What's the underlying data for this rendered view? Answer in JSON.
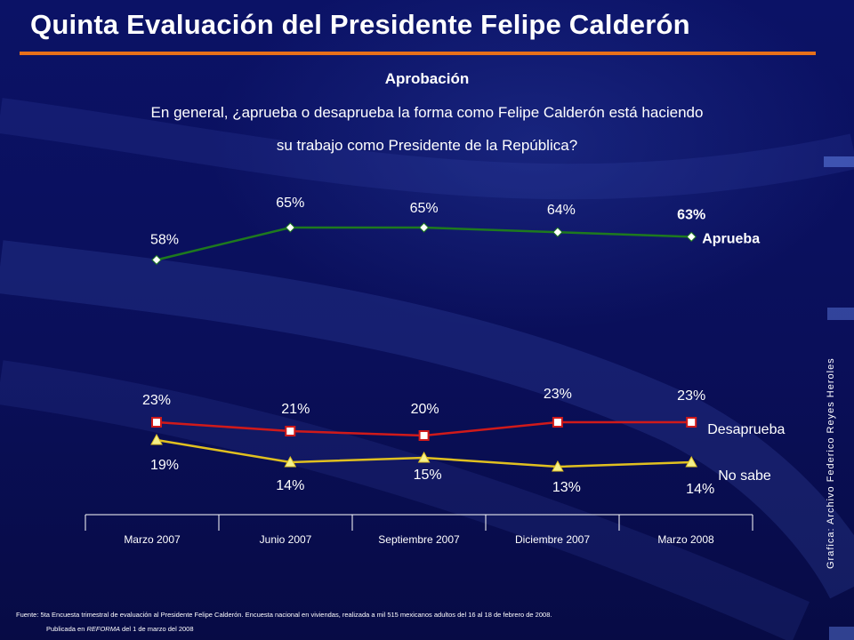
{
  "title": "Quinta Evaluación del Presidente Felipe Calderón",
  "subtitle": "Aprobación",
  "question_line1": "En general, ¿aprueba o desaprueba la forma como Felipe Calderón está haciendo",
  "question_line2": "su trabajo como Presidente de la República?",
  "credit": "Grafica: Archivo Federico Reyes Heroles",
  "source": "Fuente: 5ta Encuesta trimestral de evaluación al Presidente Felipe Calderón. Encuesta nacional en viviendas, realizada a mil 515 mexicanos adultos del 16 al 18 de febrero de 2008.",
  "published_prefix": "Publicada en ",
  "published_outlet": "REFORMA",
  "published_suffix": " del 1 de marzo del 2008",
  "colors": {
    "background": "#0a1060",
    "accent_rule": "#e8701a",
    "aprueba": "#1e7a1e",
    "desaprueba": "#d01a1a",
    "no_sabe": "#e0c020"
  },
  "chart_data": {
    "type": "line",
    "categories": [
      "Marzo 2007",
      "Junio 2007",
      "Septiembre 2007",
      "Diciembre 2007",
      "Marzo 2008"
    ],
    "series": [
      {
        "name": "Aprueba",
        "values": [
          58,
          65,
          65,
          64,
          63
        ],
        "labels": [
          "58%",
          "65%",
          "65%",
          "64%",
          "63%"
        ],
        "marker": "diamond",
        "color": "#1e7a1e"
      },
      {
        "name": "Desaprueba",
        "values": [
          23,
          21,
          20,
          23,
          23
        ],
        "labels": [
          "23%",
          "21%",
          "20%",
          "23%",
          "23%"
        ],
        "marker": "square",
        "color": "#d01a1a"
      },
      {
        "name": "No sabe",
        "values": [
          19,
          14,
          15,
          13,
          14
        ],
        "labels": [
          "19%",
          "14%",
          "15%",
          "13%",
          "14%"
        ],
        "marker": "triangle",
        "color": "#e0c020"
      }
    ],
    "grid": false,
    "legend": "inline labels at right end of each series"
  }
}
